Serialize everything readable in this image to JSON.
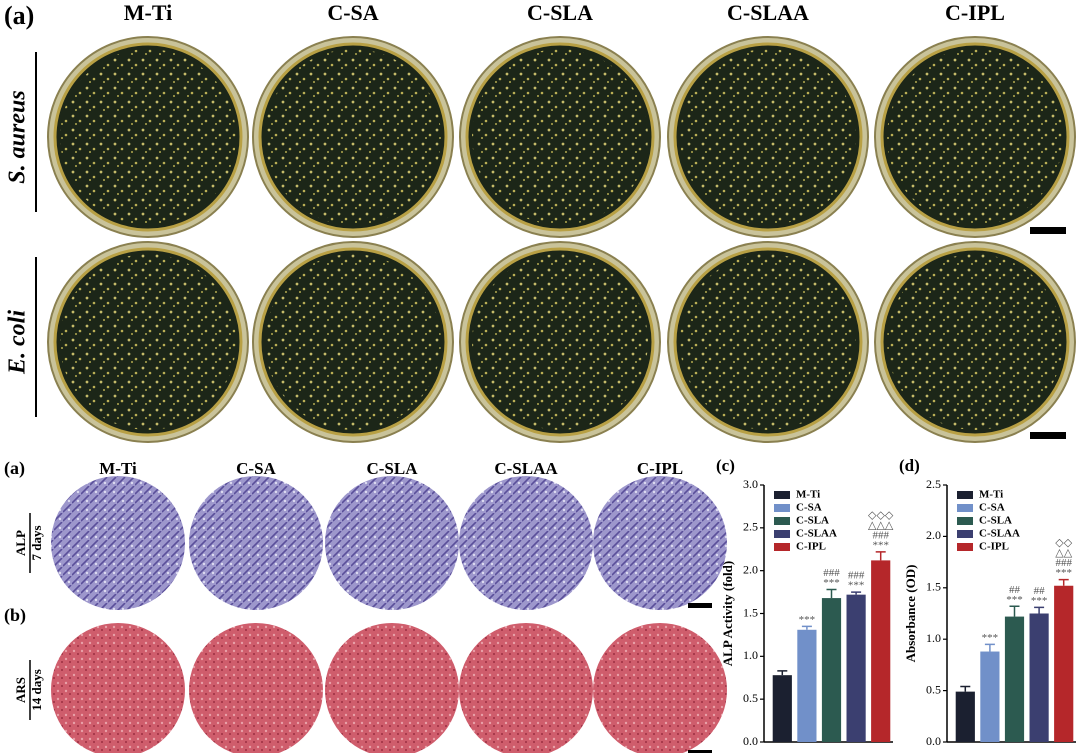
{
  "figure": {
    "top": {
      "label": "(a)",
      "columns": [
        "M-Ti",
        "C-SA",
        "C-SLA",
        "C-SLAA",
        "C-IPL"
      ],
      "rows": [
        "S. aureus",
        "E. coli"
      ]
    },
    "bottom": {
      "columns": [
        "M-Ti",
        "C-SA",
        "C-SLA",
        "C-SLAA",
        "C-IPL"
      ],
      "rows": [
        {
          "label": "(a)",
          "stain": "ALP",
          "time": "7 days"
        },
        {
          "label": "(b)",
          "stain": "ARS",
          "time": "14 days"
        }
      ]
    }
  },
  "chart_data": [
    {
      "type": "bar",
      "panel": "(c)",
      "y_label": "ALP Activity (fold)",
      "categories": [
        "M-Ti",
        "C-SA",
        "C-SLA",
        "C-SLAA",
        "C-IPL"
      ],
      "values": [
        0.78,
        1.31,
        1.68,
        1.72,
        2.12
      ],
      "errors": [
        0.05,
        0.04,
        0.1,
        0.03,
        0.1
      ],
      "colors": [
        "#1b2030",
        "#7190c9",
        "#2c5a50",
        "#3b3f70",
        "#b5272a"
      ],
      "annotations": [
        [],
        [
          "***"
        ],
        [
          "###",
          "***"
        ],
        [
          "###",
          "***"
        ],
        [
          "◇◇◇",
          "△△△",
          "###",
          "***"
        ]
      ],
      "ylim": [
        0,
        3
      ],
      "yticks": [
        {
          "value": 0,
          "label": "0.0"
        },
        {
          "value": 0.5,
          "label": "0.5"
        },
        {
          "value": 1,
          "label": "1.0"
        },
        {
          "value": 1.5,
          "label": "1.5"
        },
        {
          "value": 2,
          "label": "2.0"
        },
        {
          "value": 2.5,
          "label": "2.5"
        },
        {
          "value": 3,
          "label": "3.0"
        }
      ]
    },
    {
      "type": "bar",
      "panel": "(d)",
      "y_label": "Absorbance (OD)",
      "categories": [
        "M-Ti",
        "C-SA",
        "C-SLA",
        "C-SLAA",
        "C-IPL"
      ],
      "values": [
        0.49,
        0.88,
        1.22,
        1.25,
        1.52
      ],
      "errors": [
        0.05,
        0.07,
        0.1,
        0.06,
        0.06
      ],
      "colors": [
        "#1b2030",
        "#7190c9",
        "#2c5a50",
        "#3b3f70",
        "#b5272a"
      ],
      "annotations": [
        [],
        [
          "***"
        ],
        [
          "##",
          "***"
        ],
        [
          "##",
          "***"
        ],
        [
          "◇◇",
          "△△",
          "###",
          "***"
        ]
      ],
      "ylim": [
        0,
        2.5
      ],
      "yticks": [
        {
          "value": 0,
          "label": "0.0"
        },
        {
          "value": 0.5,
          "label": "0.5"
        },
        {
          "value": 1,
          "label": "1.0"
        },
        {
          "value": 1.5,
          "label": "1.5"
        },
        {
          "value": 2,
          "label": "2.0"
        },
        {
          "value": 2.5,
          "label": "2.5"
        }
      ]
    }
  ]
}
